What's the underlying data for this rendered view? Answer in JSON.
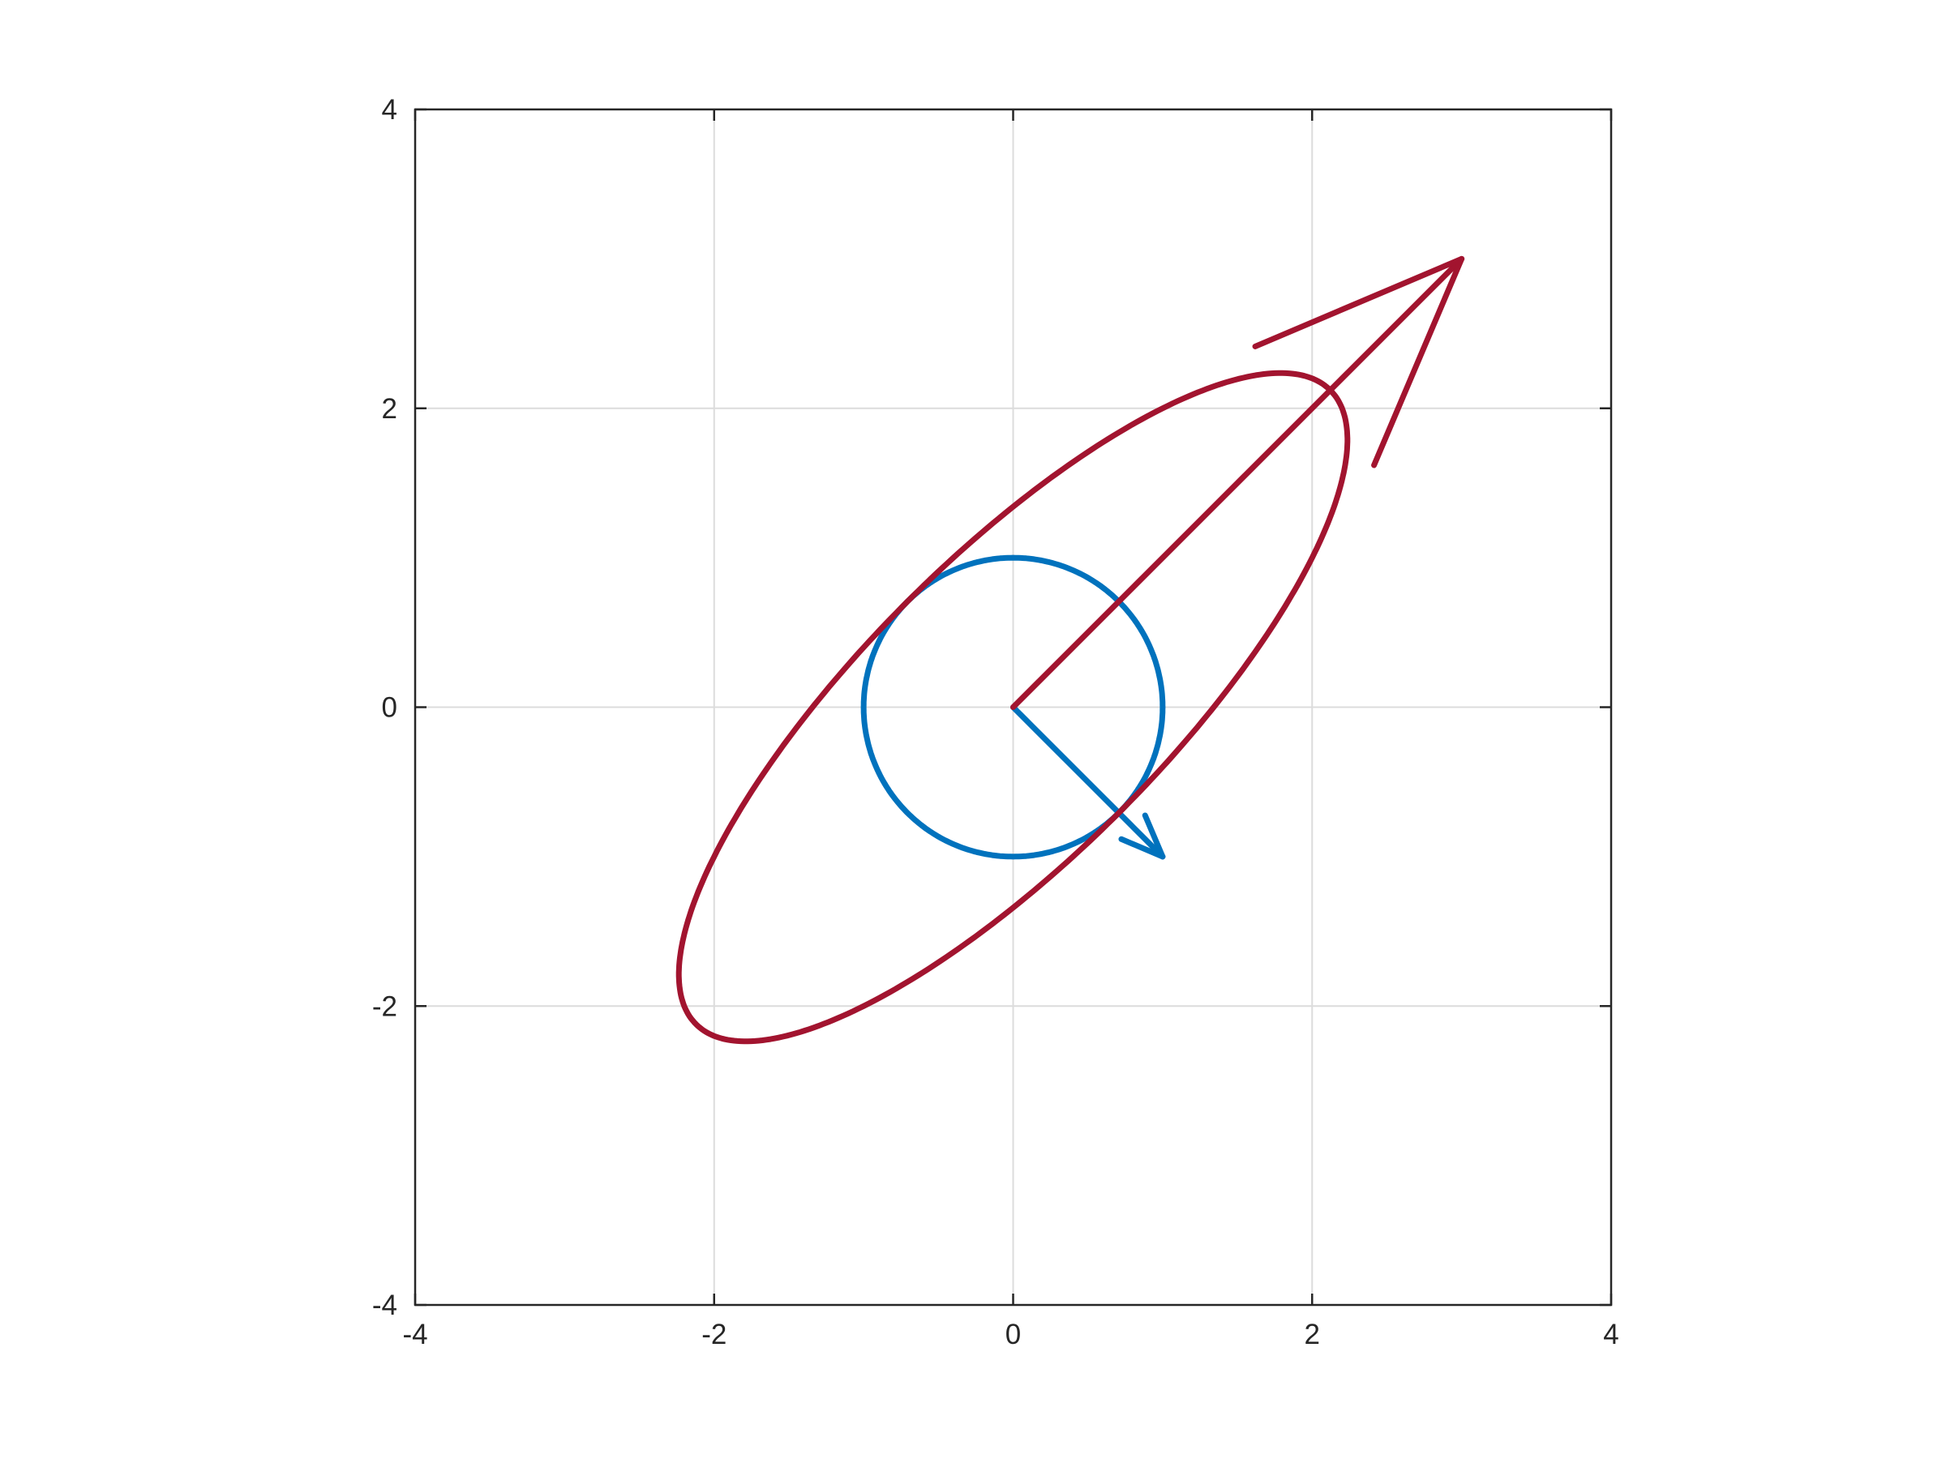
{
  "chart_data": {
    "type": "line",
    "title": "",
    "xlabel": "",
    "ylabel": "",
    "xlim": [
      -4,
      4
    ],
    "ylim": [
      -4,
      4
    ],
    "xticks": [
      -4,
      -2,
      0,
      2,
      4
    ],
    "yticks": [
      -4,
      -2,
      0,
      2,
      4
    ],
    "xtick_labels": [
      "-4",
      "-2",
      "0",
      "2",
      "4"
    ],
    "ytick_labels": [
      "-4",
      "-2",
      "0",
      "2",
      "4"
    ],
    "grid": true,
    "aspect": "equal",
    "series": [
      {
        "kind": "circle",
        "color": "#0072BD",
        "center": [
          0,
          0
        ],
        "radius": 1,
        "vector": {
          "from": [
            0,
            0
          ],
          "to": [
            1,
            -1
          ],
          "head_size": 0.3
        }
      },
      {
        "kind": "ellipse",
        "color": "#A2142F",
        "matrix": [
          [
            2,
            1
          ],
          [
            1,
            2
          ]
        ],
        "center": [
          0,
          0
        ],
        "vector": {
          "from": [
            0,
            0
          ],
          "to": [
            3,
            3
          ],
          "head_size": 1.5
        }
      }
    ]
  }
}
